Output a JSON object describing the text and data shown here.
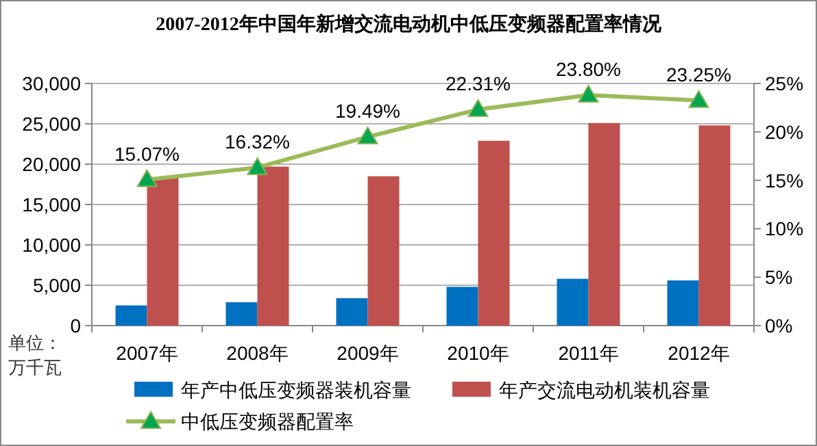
{
  "chart_data": {
    "type": "bar",
    "title": "2007-2012年中国年新增交流电动机中低压变频器配置率情况",
    "categories": [
      "2007年",
      "2008年",
      "2009年",
      "2010年",
      "2011年",
      "2012年"
    ],
    "series": [
      {
        "name": "年产中低压变频器装机容量",
        "color": "#0070c0",
        "values": [
          2500,
          2900,
          3400,
          4800,
          5800,
          5600
        ]
      },
      {
        "name": "年产交流电动机装机容量",
        "color": "#c0504d",
        "values": [
          18300,
          19700,
          18500,
          22900,
          25100,
          24800
        ]
      },
      {
        "name": "中低压变频器配置率",
        "type": "line",
        "axis": "y2",
        "color": "#9bbb59",
        "marker": "triangle",
        "values": [
          15.07,
          16.32,
          19.49,
          22.31,
          23.8,
          23.25
        ],
        "value_labels": [
          "15.07%",
          "16.32%",
          "19.49%",
          "22.31%",
          "23.80%",
          "23.25%"
        ]
      }
    ],
    "ylim": [
      0,
      30000
    ],
    "yticks": [
      0,
      {
        "value": 5000,
        "label": "5,000"
      },
      {
        "value": 10000,
        "label": "10,000"
      },
      {
        "value": 15000,
        "label": "15,000"
      },
      {
        "value": 20000,
        "label": "20,000"
      },
      {
        "value": 25000,
        "label": "25,000"
      },
      {
        "value": 30000,
        "label": "30,000"
      }
    ],
    "y2lim": [
      0,
      25
    ],
    "y2ticks": [
      {
        "value": 0,
        "label": "0%"
      },
      {
        "value": 5,
        "label": "5%"
      },
      {
        "value": 10,
        "label": "10%"
      },
      {
        "value": 15,
        "label": "15%"
      },
      {
        "value": 20,
        "label": "20%"
      },
      {
        "value": 25,
        "label": "25%"
      }
    ],
    "grid": "y",
    "legend": "bottom",
    "annotations": [
      "单位：",
      "万千瓦"
    ]
  }
}
